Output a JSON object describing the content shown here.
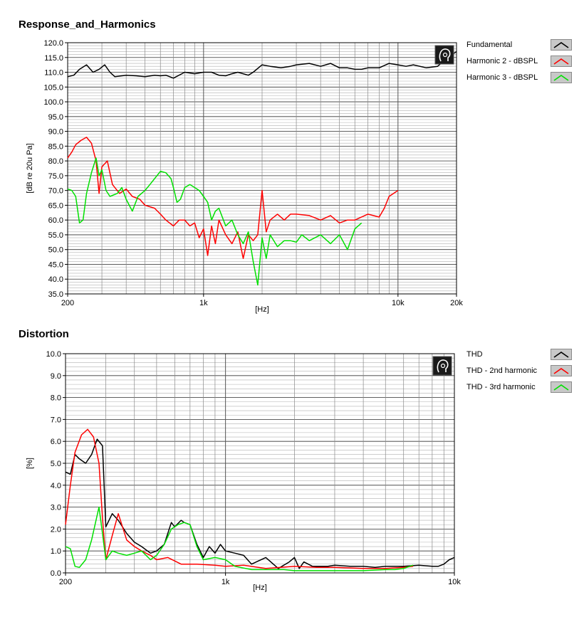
{
  "chart_data": [
    {
      "type": "line",
      "title": "Response_and_Harmonics",
      "xlabel": "[Hz]",
      "ylabel": "[dB re 20u Pa]",
      "xscale": "log",
      "xlim": [
        200,
        20000
      ],
      "ylim": [
        35,
        120
      ],
      "xticks": [
        {
          "v": 200,
          "label": "200"
        },
        {
          "v": 1000,
          "label": "1k"
        },
        {
          "v": 10000,
          "label": "10k"
        },
        {
          "v": 20000,
          "label": "20k"
        }
      ],
      "yticks": [
        35,
        40,
        45,
        50,
        55,
        60,
        65,
        70,
        75,
        80,
        85,
        90,
        95,
        100,
        105,
        110,
        115,
        120
      ],
      "ytick_labels": [
        "35.0",
        "40.0",
        "45.0",
        "50.0",
        "55.0",
        "60.0",
        "65.0",
        "70.0",
        "75.0",
        "80.0",
        "85.0",
        "90.0",
        "95.0",
        "100.0",
        "105.0",
        "110.0",
        "115.0",
        "120.0"
      ],
      "grid": true,
      "legend_position": "right",
      "series": [
        {
          "name": "Fundamental",
          "color": "#000000",
          "x": [
            200,
            215,
            230,
            250,
            270,
            290,
            310,
            330,
            350,
            400,
            450,
            500,
            560,
            600,
            640,
            700,
            800,
            900,
            1000,
            1100,
            1200,
            1300,
            1400,
            1500,
            1700,
            1800,
            2000,
            2200,
            2500,
            2800,
            3000,
            3500,
            4000,
            4500,
            5000,
            5500,
            6000,
            6500,
            7000,
            8000,
            9000,
            10000,
            11000,
            12000,
            14000,
            16000,
            18000,
            20000
          ],
          "y": [
            108.5,
            109,
            111,
            112.5,
            110,
            111,
            112.5,
            110,
            108.5,
            109,
            108.8,
            108.5,
            109,
            108.8,
            109,
            108,
            110,
            109.5,
            110,
            110,
            109,
            108.8,
            109.5,
            110,
            109,
            110,
            112.5,
            112,
            111.5,
            112,
            112.5,
            113,
            112,
            113,
            111.5,
            111.5,
            111,
            111,
            111.5,
            111.5,
            113,
            112.5,
            112,
            112.5,
            111.5,
            112,
            115,
            117
          ]
        },
        {
          "name": "Harmonic 2 - dBSPL",
          "color": "#ff0000",
          "x": [
            200,
            210,
            220,
            235,
            250,
            265,
            280,
            290,
            300,
            320,
            340,
            370,
            400,
            430,
            470,
            500,
            560,
            600,
            640,
            700,
            750,
            800,
            850,
            900,
            950,
            1000,
            1050,
            1100,
            1150,
            1200,
            1300,
            1400,
            1500,
            1600,
            1700,
            1800,
            1900,
            2000,
            2100,
            2200,
            2400,
            2600,
            2800,
            3000,
            3500,
            4000,
            4500,
            5000,
            5500,
            6000,
            7000,
            8000,
            8500,
            9000,
            10000
          ],
          "y": [
            81,
            83,
            85.5,
            87,
            88,
            86,
            80,
            69,
            78,
            80,
            72,
            69,
            70.5,
            68,
            67,
            65,
            64,
            62,
            60,
            58,
            60,
            60,
            58,
            59,
            54,
            57,
            48,
            58,
            52,
            60,
            55,
            52,
            56,
            47,
            55,
            53,
            55,
            70,
            56,
            60,
            62,
            60,
            62,
            62,
            61.5,
            60,
            61.5,
            59,
            60,
            60,
            62,
            61,
            64,
            68,
            70
          ]
        },
        {
          "name": "Harmonic 3 - dBSPL",
          "color": "#00e000",
          "x": [
            200,
            210,
            220,
            230,
            240,
            250,
            265,
            280,
            290,
            300,
            315,
            330,
            360,
            380,
            400,
            430,
            460,
            500,
            530,
            560,
            600,
            640,
            680,
            700,
            730,
            760,
            800,
            850,
            900,
            950,
            1000,
            1050,
            1100,
            1150,
            1200,
            1300,
            1400,
            1500,
            1600,
            1700,
            1800,
            1900,
            2000,
            2100,
            2200,
            2400,
            2600,
            2800,
            3000,
            3200,
            3500,
            4000,
            4500,
            5000,
            5500,
            6000,
            6500
          ],
          "y": [
            70.5,
            70,
            68,
            59,
            60,
            69,
            76,
            81,
            75,
            77,
            70,
            68,
            69,
            71,
            67,
            63,
            68,
            70,
            72,
            74,
            76.5,
            76,
            74,
            71,
            66,
            67,
            71,
            72,
            71,
            70,
            68,
            66,
            60,
            63,
            64,
            58,
            60,
            55,
            52,
            56,
            46,
            38,
            54,
            47,
            55,
            51,
            53,
            53,
            52.5,
            55,
            53,
            55,
            52,
            55,
            50,
            57,
            59
          ]
        }
      ]
    },
    {
      "type": "line",
      "title": "Distortion",
      "xlabel": "[Hz]",
      "ylabel": "[%]",
      "xscale": "log",
      "xlim": [
        200,
        10000
      ],
      "ylim": [
        0,
        10
      ],
      "xticks": [
        {
          "v": 200,
          "label": "200"
        },
        {
          "v": 1000,
          "label": "1k"
        },
        {
          "v": 10000,
          "label": "10k"
        }
      ],
      "yticks": [
        0,
        1,
        2,
        3,
        4,
        5,
        6,
        7,
        8,
        9,
        10
      ],
      "ytick_labels": [
        "0.0",
        "1.0",
        "2.0",
        "3.0",
        "4.0",
        "5.0",
        "6.0",
        "7.0",
        "8.0",
        "9.0",
        "10.0"
      ],
      "grid": true,
      "legend_position": "right",
      "series": [
        {
          "name": "THD",
          "color": "#000000",
          "x": [
            200,
            210,
            220,
            230,
            245,
            260,
            275,
            290,
            300,
            320,
            340,
            370,
            400,
            430,
            470,
            500,
            540,
            580,
            600,
            640,
            660,
            700,
            750,
            800,
            850,
            900,
            950,
            1000,
            1100,
            1200,
            1300,
            1500,
            1700,
            1900,
            2000,
            2100,
            2200,
            2400,
            2800,
            3000,
            3500,
            4000,
            4500,
            5000,
            6000,
            7000,
            8000,
            8500,
            9000,
            9500,
            10000
          ],
          "y": [
            4.6,
            4.5,
            5.4,
            5.2,
            5.0,
            5.4,
            6.1,
            5.8,
            2.1,
            2.7,
            2.4,
            1.8,
            1.4,
            1.2,
            0.9,
            1.0,
            1.3,
            2.3,
            2.1,
            2.4,
            2.3,
            2.2,
            1.3,
            0.7,
            1.2,
            0.9,
            1.3,
            1.0,
            0.9,
            0.8,
            0.4,
            0.7,
            0.2,
            0.5,
            0.7,
            0.2,
            0.5,
            0.3,
            0.3,
            0.35,
            0.3,
            0.3,
            0.25,
            0.3,
            0.3,
            0.35,
            0.3,
            0.3,
            0.4,
            0.6,
            0.7
          ]
        },
        {
          "name": "THD - 2nd harmonic",
          "color": "#ff0000",
          "x": [
            200,
            210,
            220,
            235,
            250,
            265,
            280,
            290,
            300,
            320,
            340,
            370,
            400,
            430,
            470,
            500,
            560,
            640,
            750,
            900,
            1000,
            1200,
            1500,
            2000,
            2500,
            3000,
            4000,
            5000,
            6000,
            6600
          ],
          "y": [
            2.2,
            4.0,
            5.5,
            6.3,
            6.55,
            6.2,
            5.0,
            2.5,
            0.6,
            1.7,
            2.7,
            1.5,
            1.2,
            1.0,
            0.8,
            0.6,
            0.7,
            0.4,
            0.4,
            0.35,
            0.3,
            0.35,
            0.2,
            0.3,
            0.25,
            0.25,
            0.2,
            0.2,
            0.25,
            0.3
          ]
        },
        {
          "name": "THD - 3rd harmonic",
          "color": "#00e000",
          "x": [
            200,
            210,
            220,
            230,
            245,
            260,
            280,
            290,
            300,
            320,
            340,
            370,
            400,
            430,
            470,
            500,
            540,
            580,
            620,
            660,
            700,
            750,
            800,
            900,
            1000,
            1100,
            1300,
            1500,
            1800,
            2000,
            2500,
            3000,
            4000,
            5000,
            5500,
            6000,
            6600
          ],
          "y": [
            1.2,
            1.1,
            0.3,
            0.25,
            0.6,
            1.5,
            3.0,
            1.8,
            0.6,
            1.0,
            0.9,
            0.8,
            0.9,
            1.0,
            0.6,
            0.8,
            1.3,
            2.0,
            2.2,
            2.3,
            2.2,
            1.2,
            0.6,
            0.7,
            0.6,
            0.3,
            0.15,
            0.15,
            0.15,
            0.1,
            0.1,
            0.1,
            0.1,
            0.15,
            0.15,
            0.2,
            0.35
          ]
        }
      ]
    }
  ]
}
